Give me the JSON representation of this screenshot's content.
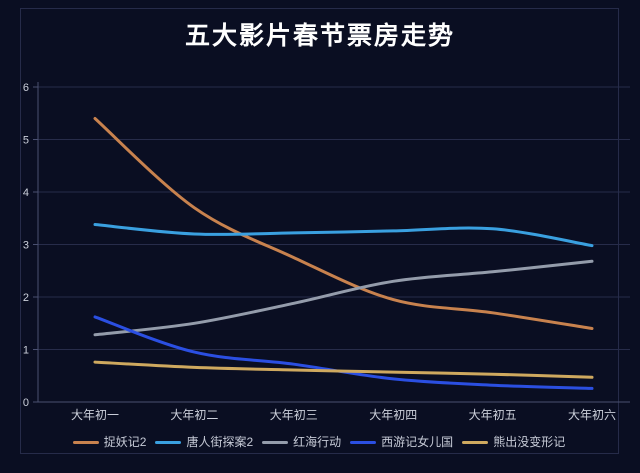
{
  "title": "五大影片春节票房走势",
  "chart_data": {
    "type": "line",
    "smooth": true,
    "grid": true,
    "legend_position": "bottom",
    "categories": [
      "大年初一",
      "大年初二",
      "大年初三",
      "大年初四",
      "大年初五",
      "大年初六"
    ],
    "series": [
      {
        "name": "捉妖记2",
        "color": "#c8824e",
        "values": [
          5.4,
          3.7,
          2.75,
          1.95,
          1.7,
          1.4
        ]
      },
      {
        "name": "唐人街探案2",
        "color": "#3aa0e0",
        "values": [
          3.38,
          3.2,
          3.22,
          3.26,
          3.3,
          2.98
        ]
      },
      {
        "name": "红海行动",
        "color": "#949cab",
        "values": [
          1.28,
          1.5,
          1.88,
          2.3,
          2.48,
          2.68
        ]
      },
      {
        "name": "西游记女儿国",
        "color": "#2b4fe2",
        "values": [
          1.62,
          0.95,
          0.72,
          0.44,
          0.32,
          0.26
        ]
      },
      {
        "name": "熊出没变形记",
        "color": "#cfa95f",
        "values": [
          0.76,
          0.66,
          0.61,
          0.57,
          0.53,
          0.47
        ]
      }
    ],
    "y_ticks": [
      0,
      1,
      2,
      3,
      4,
      5,
      6
    ],
    "ylim": [
      0,
      6
    ],
    "xlabel": "",
    "ylabel": ""
  },
  "colors": {
    "background": "#0a0e22",
    "widget_border": "#262b49",
    "axis_line": "#4a5070",
    "grid_line": "#272c4a",
    "axis_text": "#ccd0db",
    "title_text": "#ffffff",
    "legend_text": "#c6cad6"
  }
}
